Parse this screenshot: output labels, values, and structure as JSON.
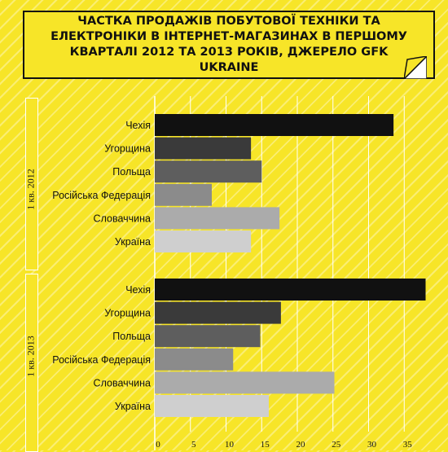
{
  "title": "ЧАСТКА ПРОДАЖІВ ПОБУТОВОЇ ТЕХНІКИ ТА ЕЛЕКТРОНІКИ В ІНТЕРНЕТ-МАГАЗИНАХ В ПЕРШОМУ КВАРТАЛІ 2012 ТА 2013 РОКІВ, ДЖЕРЕЛО GFK UKRAINE",
  "colors": {
    "background": "#f7e528",
    "bars": [
      "#111111",
      "#3a3a3a",
      "#5e5e5e",
      "#8b8b8b",
      "#ababab",
      "#cfcfcf"
    ],
    "grid": "#ffffff"
  },
  "chart_data": {
    "type": "bar",
    "orientation": "horizontal",
    "categories": [
      "Чехія",
      "Угорщина",
      "Польща",
      "Російська Федерація",
      "Словаччина",
      "Україна"
    ],
    "groups": [
      {
        "name": "1 кв. 2012",
        "values": [
          33.5,
          13.5,
          15.0,
          8.0,
          17.5,
          13.5
        ]
      },
      {
        "name": "1 кв. 2013",
        "values": [
          38.0,
          17.7,
          14.8,
          11.0,
          25.2,
          16.0
        ]
      }
    ],
    "xticks": [
      0,
      5,
      10,
      15,
      20,
      25,
      30,
      35
    ],
    "xlim": [
      0,
      40
    ],
    "grid": true
  }
}
